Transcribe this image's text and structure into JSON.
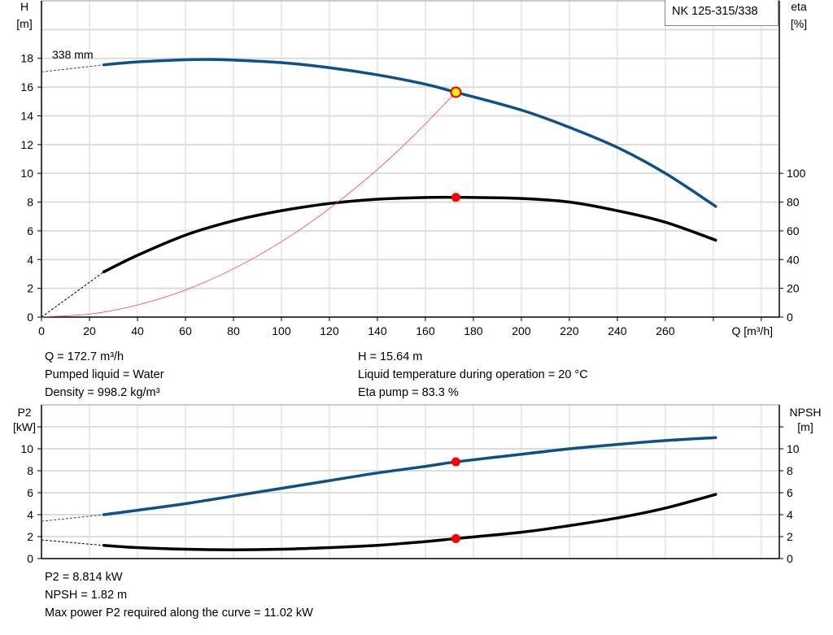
{
  "chart_data": [
    {
      "type": "line",
      "title": "NK 125-315/338",
      "xlabel": "Q [m³/h]",
      "ylabel": "H\n[m]",
      "ylabel_left_lines": [
        "H",
        "[m]"
      ],
      "ylabel_right_lines": [
        "eta",
        "[%]"
      ],
      "xlim": [
        0,
        307.5
      ],
      "ylim": [
        0,
        22
      ],
      "y2lim": [
        0,
        220
      ],
      "grid": true,
      "x_ticks": [
        0,
        20,
        40,
        60,
        80,
        100,
        120,
        140,
        160,
        180,
        200,
        220,
        240,
        260
      ],
      "x_ticks_unlabeled": [
        280,
        300
      ],
      "y_ticks": [
        0,
        2,
        4,
        6,
        8,
        10,
        12,
        14,
        16,
        18
      ],
      "y2_ticks": [
        0,
        20,
        40,
        60,
        80,
        100
      ],
      "curve_label": "338 mm",
      "series": [
        {
          "name": "H",
          "axis": "left",
          "color": "#0f4f8a",
          "x": [
            26,
            40,
            60,
            70,
            80,
            100,
            120,
            140,
            160,
            172.7,
            200,
            220,
            240,
            260,
            281
          ],
          "y": [
            17.55,
            17.75,
            17.9,
            17.92,
            17.88,
            17.7,
            17.35,
            16.85,
            16.2,
            15.64,
            14.4,
            13.2,
            11.8,
            10.0,
            7.7
          ],
          "extrapolated": {
            "x": [
              0,
              26
            ],
            "y": [
              17.05,
              17.55
            ]
          }
        },
        {
          "name": "eta",
          "axis": "right",
          "color": "#000000",
          "x": [
            26,
            40,
            60,
            80,
            100,
            120,
            140,
            160,
            172.7,
            200,
            220,
            240,
            260,
            281
          ],
          "y": [
            31.5,
            43,
            57,
            67,
            74,
            79,
            82,
            83.2,
            83.3,
            82.5,
            80,
            74,
            66,
            53.5
          ],
          "extrapolated": {
            "x": [
              0,
              26
            ],
            "y": [
              0,
              31.5
            ]
          }
        },
        {
          "name": "system",
          "axis": "left",
          "color": "#ff4040",
          "x": [
            0,
            20,
            36,
            54,
            70,
            87,
            105,
            122,
            140,
            155,
            172.7
          ],
          "y": [
            0,
            0.21,
            0.68,
            1.53,
            2.57,
            3.97,
            5.78,
            7.8,
            10.27,
            12.6,
            15.64
          ]
        }
      ],
      "operating_points": [
        {
          "x": 172.7,
          "y": 15.64,
          "axis": "left",
          "color": "#ffee00"
        },
        {
          "x": 172.7,
          "y": 83.3,
          "axis": "right",
          "color": "#ff0000"
        }
      ],
      "annotations": {
        "left": [
          "Q = 172.7 m³/h",
          "Pumped liquid = Water",
          "Density = 998.2 kg/m³"
        ],
        "right": [
          "H = 15.64 m",
          "Liquid temperature during operation = 20 °C",
          "Eta pump = 83.3 %"
        ]
      }
    },
    {
      "type": "line",
      "ylabel_left_lines": [
        "P2",
        "[kW]"
      ],
      "ylabel_right_lines": [
        "NPSH",
        "[m]"
      ],
      "xlim": [
        0,
        307.5
      ],
      "ylim": [
        0,
        14
      ],
      "y2lim": [
        0,
        14
      ],
      "grid": true,
      "y_ticks": [
        0,
        2,
        4,
        6,
        8,
        10
      ],
      "y2_ticks": [
        0,
        2,
        4,
        6,
        8,
        10
      ],
      "series": [
        {
          "name": "P2",
          "axis": "left",
          "color": "#0f4f8a",
          "x": [
            26,
            40,
            60,
            80,
            100,
            120,
            140,
            160,
            172.7,
            200,
            220,
            240,
            260,
            281
          ],
          "y": [
            4.0,
            4.4,
            5.0,
            5.7,
            6.4,
            7.1,
            7.8,
            8.4,
            8.81,
            9.5,
            10.0,
            10.4,
            10.75,
            11.02
          ],
          "extrapolated": {
            "x": [
              0,
              26
            ],
            "y": [
              3.4,
              4.0
            ]
          }
        },
        {
          "name": "NPSH",
          "axis": "right",
          "color": "#000000",
          "x": [
            26,
            40,
            60,
            80,
            100,
            120,
            140,
            160,
            172.7,
            200,
            220,
            240,
            260,
            281
          ],
          "y": [
            1.2,
            1.0,
            0.85,
            0.8,
            0.85,
            1.0,
            1.2,
            1.55,
            1.82,
            2.4,
            3.0,
            3.7,
            4.6,
            5.85
          ],
          "extrapolated": {
            "x": [
              0,
              26
            ],
            "y": [
              1.7,
              1.2
            ]
          }
        }
      ],
      "operating_points": [
        {
          "x": 172.7,
          "y": 8.814,
          "axis": "left",
          "color": "#ff0000"
        },
        {
          "x": 172.7,
          "y": 1.82,
          "axis": "right",
          "color": "#ff0000"
        }
      ],
      "annotations": [
        "P2 = 8.814 kW",
        "NPSH = 1.82 m",
        "Max power P2 required along the curve = 11.02 kW"
      ]
    }
  ]
}
